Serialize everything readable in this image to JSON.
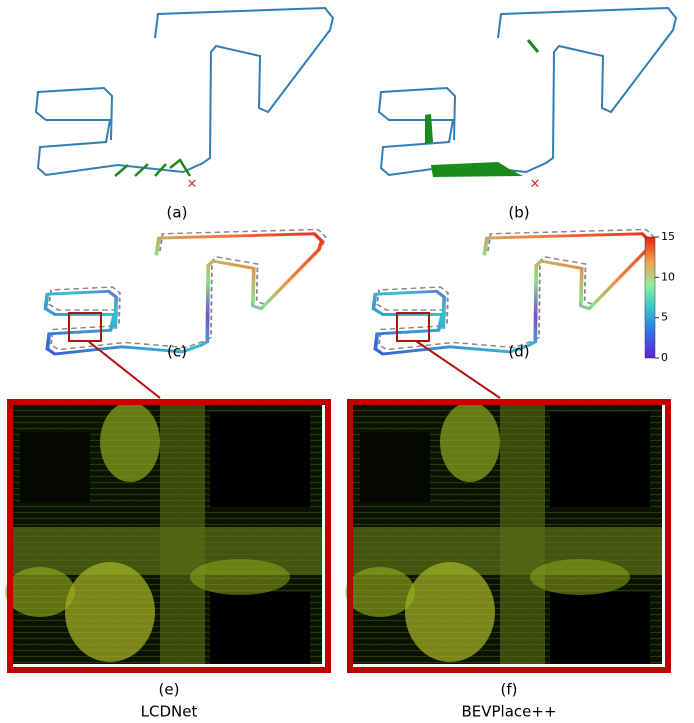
{
  "labels": [
    "(a)",
    "(b)",
    "(c)",
    "(d)",
    "(e)",
    "(f)"
  ],
  "methods": [
    "LCDNet",
    "BEVPlace++"
  ],
  "colorbar": {
    "lim": [
      0,
      15
    ],
    "ticks": [
      0,
      5,
      10,
      15
    ]
  }
}
